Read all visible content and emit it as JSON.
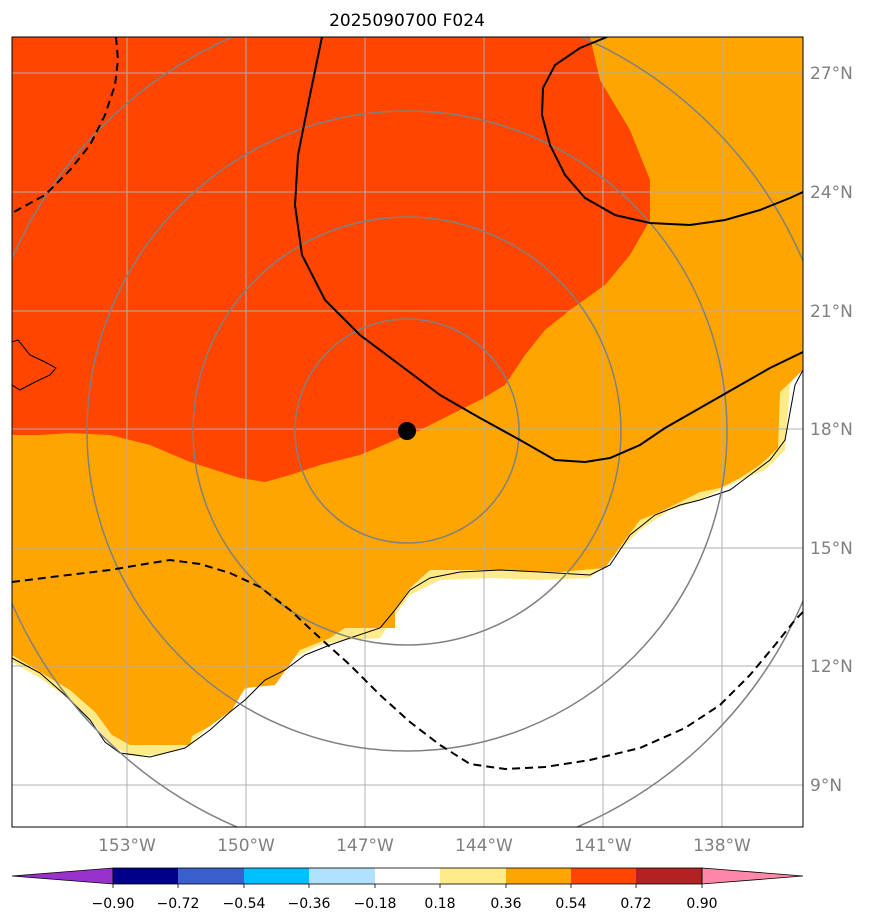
{
  "title": "2025090700 F024",
  "map": {
    "lon_ticks": [
      "153°W",
      "150°W",
      "147°W",
      "144°W",
      "141°W",
      "138°W"
    ],
    "lat_ticks": [
      "27°N",
      "24°N",
      "21°N",
      "18°N",
      "15°N",
      "12°N",
      "9°N"
    ],
    "storm_marker": "storm-center",
    "fill_colors": {
      "orange_red": "#ff4500",
      "orange": "#ffa500",
      "khaki": "#ffeb8a",
      "white": "#ffffff"
    },
    "range_ring_color": "#808080",
    "gridline_color": "#b0b0b0"
  },
  "colorbar": {
    "ticks": [
      "−0.90",
      "−0.72",
      "−0.54",
      "−0.36",
      "−0.18",
      "0.18",
      "0.36",
      "0.54",
      "0.72",
      "0.90"
    ],
    "colors": [
      "#9932cc",
      "#00008b",
      "#3a5fcd",
      "#00bfff",
      "#b0e2ff",
      "#ffffff",
      "#ffeb8a",
      "#ffa500",
      "#ff4500",
      "#b22222",
      "#ff88aa"
    ]
  }
}
